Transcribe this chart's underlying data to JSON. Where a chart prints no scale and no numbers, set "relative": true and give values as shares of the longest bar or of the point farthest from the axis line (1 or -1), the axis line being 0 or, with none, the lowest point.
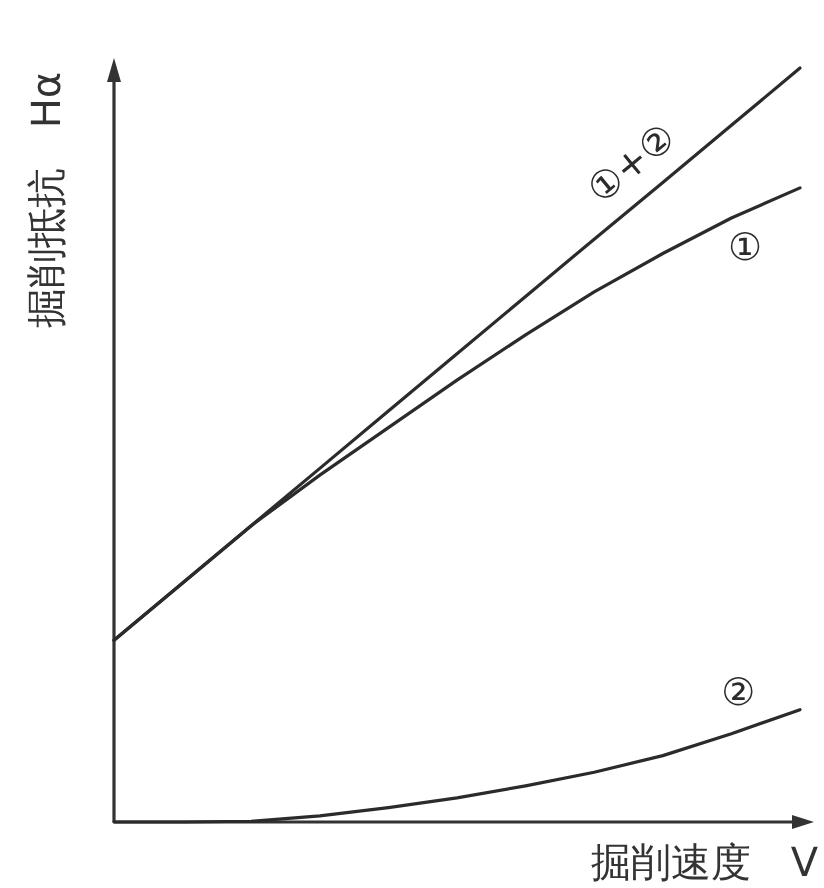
{
  "chart_data": {
    "type": "line",
    "relative": true,
    "xlabel": "掘削速度　V",
    "ylabel": "掘削抵抗　Hα",
    "line_style": "solid",
    "categories": [
      null,
      null,
      null,
      null,
      null,
      null,
      null,
      null,
      null,
      null,
      null
    ],
    "series": [
      {
        "name": "①+②",
        "color": "#2b2b2b",
        "values": [
          0.241,
          0.317,
          0.393,
          0.469,
          0.545,
          0.621,
          0.697,
          0.773,
          0.848,
          0.924,
          1.0
        ]
      },
      {
        "name": "①",
        "color": "#2b2b2b",
        "values": [
          0.241,
          0.317,
          0.393,
          0.46,
          0.523,
          0.586,
          0.646,
          0.703,
          0.754,
          0.801,
          0.841
        ]
      },
      {
        "name": "②",
        "color": "#2b2b2b",
        "values": [
          0,
          0,
          0.001,
          0.008,
          0.019,
          0.032,
          0.048,
          0.066,
          0.088,
          0.117,
          0.149
        ]
      }
    ]
  }
}
